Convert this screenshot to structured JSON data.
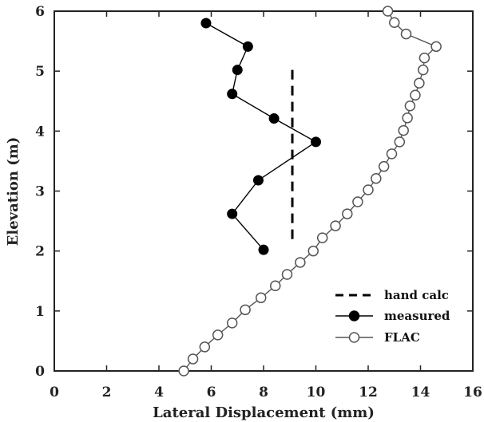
{
  "chart_data": {
    "type": "line",
    "xlabel": "Lateral Displacement (mm)",
    "ylabel": "Elevation (m)",
    "xlim": [
      0,
      16
    ],
    "ylim": [
      0,
      6
    ],
    "xticks": [
      0,
      2,
      4,
      6,
      8,
      10,
      12,
      14,
      16
    ],
    "yticks": [
      0,
      1,
      2,
      3,
      4,
      5,
      6
    ],
    "grid": false,
    "legend_position": "bottom-right",
    "series": [
      {
        "name": "hand calc",
        "style": "dashed",
        "marker": "none",
        "color": "#000000",
        "points": [
          [
            9.1,
            2.2
          ],
          [
            9.1,
            5.1
          ]
        ]
      },
      {
        "name": "measured",
        "style": "solid",
        "marker": "filled-circle",
        "color": "#000000",
        "points": [
          [
            8.0,
            2.02
          ],
          [
            6.8,
            2.62
          ],
          [
            7.8,
            3.18
          ],
          [
            10.0,
            3.82
          ],
          [
            8.4,
            4.21
          ],
          [
            6.8,
            4.62
          ],
          [
            7.0,
            5.02
          ],
          [
            7.4,
            5.41
          ],
          [
            5.8,
            5.8
          ]
        ]
      },
      {
        "name": "FLAC",
        "style": "solid",
        "marker": "open-circle",
        "color": "#555555",
        "points": [
          [
            4.95,
            0.0
          ],
          [
            5.3,
            0.2
          ],
          [
            5.75,
            0.4
          ],
          [
            6.25,
            0.6
          ],
          [
            6.8,
            0.8
          ],
          [
            7.3,
            1.02
          ],
          [
            7.9,
            1.22
          ],
          [
            8.45,
            1.42
          ],
          [
            8.9,
            1.61
          ],
          [
            9.4,
            1.81
          ],
          [
            9.9,
            2.0
          ],
          [
            10.25,
            2.22
          ],
          [
            10.75,
            2.42
          ],
          [
            11.2,
            2.62
          ],
          [
            11.6,
            2.82
          ],
          [
            12.0,
            3.02
          ],
          [
            12.3,
            3.21
          ],
          [
            12.6,
            3.41
          ],
          [
            12.9,
            3.62
          ],
          [
            13.2,
            3.82
          ],
          [
            13.35,
            4.01
          ],
          [
            13.5,
            4.22
          ],
          [
            13.6,
            4.42
          ],
          [
            13.8,
            4.6
          ],
          [
            13.95,
            4.8
          ],
          [
            14.1,
            5.02
          ],
          [
            14.15,
            5.22
          ],
          [
            14.6,
            5.41
          ],
          [
            13.45,
            5.62
          ],
          [
            13.0,
            5.81
          ],
          [
            12.75,
            6.0
          ]
        ]
      }
    ]
  }
}
